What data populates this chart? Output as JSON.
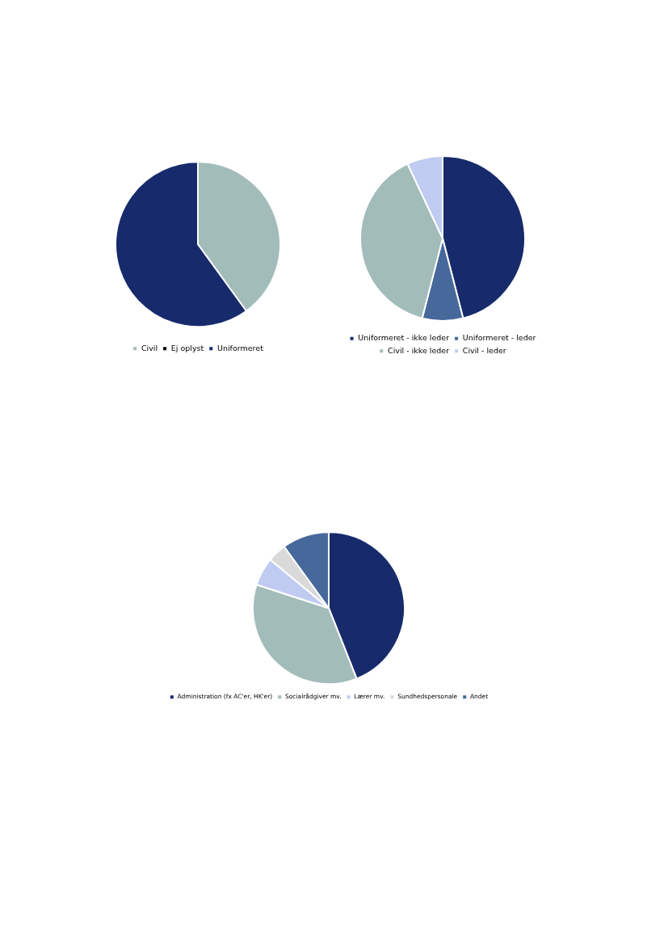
{
  "chart_data": [
    {
      "type": "pie",
      "categories": [
        "Civil",
        "Ej oplyst",
        "Uniformeret"
      ],
      "values": [
        40,
        0,
        60
      ],
      "colors": [
        "#a2bcba",
        "#000000",
        "#172a6b"
      ],
      "legend": "bottom"
    },
    {
      "type": "pie",
      "categories": [
        "Uniformeret - ikke leder",
        "Uniformeret - leder",
        "Civil - ikke leder",
        "Civil - leder"
      ],
      "values": [
        46,
        8,
        39,
        7
      ],
      "colors": [
        "#172a6b",
        "#46689b",
        "#a2bcba",
        "#c0cbf2"
      ],
      "legend": "bottom"
    },
    {
      "type": "pie",
      "categories": [
        "Administration (fx AC'er, HK'er)",
        "Socialrådgiver mv.",
        "Lærer mv.",
        "Sundhedspersonale",
        "Andet"
      ],
      "values": [
        44,
        36,
        6,
        4,
        10
      ],
      "colors": [
        "#172a6b",
        "#a2bcba",
        "#c0cbf2",
        "#d9d9d9",
        "#46689b"
      ],
      "legend": "bottom"
    }
  ]
}
